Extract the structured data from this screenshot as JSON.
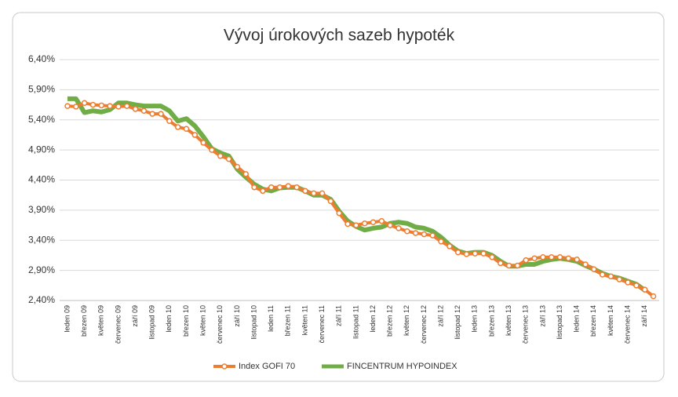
{
  "chart_data": {
    "type": "line",
    "title": "Vývoj úrokových sazeb hypoték",
    "categories": [
      "leden 09",
      null,
      "březen 09",
      null,
      "květen 09",
      null,
      "červenec 09",
      null,
      "září 09",
      null,
      "listopad 09",
      null,
      "leden 10",
      null,
      "březen 10",
      null,
      "květen 10",
      null,
      "červenec 10",
      null,
      "září 10",
      null,
      "listopad 10",
      null,
      "leden 11",
      null,
      "březen 11",
      null,
      "květen 11",
      null,
      "červenec 11",
      null,
      "září 11",
      null,
      "listopad 11",
      null,
      "leden 12",
      null,
      "březen 12",
      null,
      "květen 12",
      null,
      "červenec 12",
      null,
      "září 12",
      null,
      "listopad 12",
      null,
      "leden 13",
      null,
      "březen 13",
      null,
      "květen 13",
      null,
      "červenec 13",
      null,
      "září 13",
      null,
      "listopad 13",
      null,
      "leden 14",
      null,
      "březen 14",
      null,
      "květen 14",
      null,
      "červenec 14",
      null,
      "září 14",
      null
    ],
    "series": [
      {
        "name": "Index GOFI 70",
        "color": "#ed7d31",
        "markers": true,
        "values": [
          5.63,
          5.62,
          5.68,
          5.65,
          5.64,
          5.63,
          5.62,
          5.63,
          5.58,
          5.55,
          5.5,
          5.5,
          5.38,
          5.28,
          5.25,
          5.15,
          5.02,
          4.9,
          4.8,
          4.75,
          4.62,
          4.5,
          4.28,
          4.22,
          4.28,
          4.28,
          4.3,
          4.28,
          4.22,
          4.18,
          4.18,
          4.05,
          3.85,
          3.67,
          3.65,
          3.68,
          3.7,
          3.72,
          3.65,
          3.6,
          3.55,
          3.52,
          3.5,
          3.48,
          3.38,
          3.3,
          3.2,
          3.17,
          3.18,
          3.18,
          3.12,
          3.02,
          2.98,
          2.98,
          3.07,
          3.1,
          3.12,
          3.12,
          3.12,
          3.1,
          3.08,
          3.0,
          2.92,
          2.83,
          2.8,
          2.75,
          2.7,
          2.65,
          2.58,
          2.47
        ]
      },
      {
        "name": "FINCENTRUM HYPOINDEX",
        "color": "#70ad47",
        "markers": false,
        "values": [
          5.75,
          5.75,
          5.52,
          5.55,
          5.53,
          5.57,
          5.68,
          5.68,
          5.65,
          5.63,
          5.63,
          5.63,
          5.55,
          5.38,
          5.42,
          5.3,
          5.12,
          4.92,
          4.85,
          4.8,
          4.58,
          4.45,
          4.33,
          4.25,
          4.22,
          4.27,
          4.28,
          4.28,
          4.22,
          4.15,
          4.15,
          4.08,
          3.88,
          3.72,
          3.63,
          3.57,
          3.6,
          3.62,
          3.68,
          3.7,
          3.68,
          3.62,
          3.6,
          3.55,
          3.45,
          3.32,
          3.22,
          3.18,
          3.2,
          3.2,
          3.15,
          3.05,
          2.97,
          2.97,
          3.0,
          3.0,
          3.05,
          3.08,
          3.1,
          3.08,
          3.05,
          2.98,
          2.92,
          2.85,
          2.8,
          2.77,
          2.72,
          2.67,
          2.57,
          null
        ]
      }
    ],
    "ylim": [
      2.4,
      6.4
    ],
    "yticks": [
      {
        "value": 2.4,
        "label": "2,40%"
      },
      {
        "value": 2.9,
        "label": "2,90%"
      },
      {
        "value": 3.4,
        "label": "3,40%"
      },
      {
        "value": 3.9,
        "label": "3,90%"
      },
      {
        "value": 4.4,
        "label": "4,40%"
      },
      {
        "value": 4.9,
        "label": "4,90%"
      },
      {
        "value": 5.4,
        "label": "5,40%"
      },
      {
        "value": 5.9,
        "label": "5,90%"
      },
      {
        "value": 6.4,
        "label": "6,40%"
      }
    ],
    "grid": true,
    "legend": "bottom"
  }
}
